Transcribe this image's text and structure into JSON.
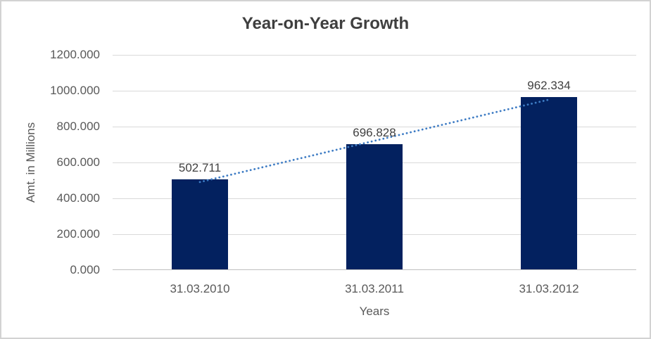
{
  "chart": {
    "title": "Year-on-Year Growth",
    "colors": {
      "bar": "#03215f",
      "trendline": "#3e7cc4",
      "gridline": "#d9d9d9",
      "axis_line": "#bfbfbf",
      "title_text": "#3f3f3f",
      "tick_text": "#595959",
      "data_label_text": "#404040",
      "frame_border": "#d2d2d2"
    }
  },
  "chart_data": {
    "type": "bar",
    "title": "Year-on-Year Growth",
    "xlabel": "Years",
    "ylabel": "Amt. in Millions",
    "categories": [
      "31.03.2010",
      "31.03.2011",
      "31.03.2012"
    ],
    "values": [
      502.711,
      696.828,
      962.334
    ],
    "data_labels": [
      "502.711",
      "696.828",
      "962.334"
    ],
    "ylim": [
      0,
      1200
    ],
    "ytick_step": 200,
    "ytick_labels": [
      "0.000",
      "200.000",
      "400.000",
      "600.000",
      "800.000",
      "1000.000",
      "1200.000"
    ],
    "grid": true,
    "legend": "none",
    "trendline": {
      "type": "linear",
      "style": "dotted",
      "color": "#3e7cc4"
    },
    "bar_color": "#03215f"
  }
}
